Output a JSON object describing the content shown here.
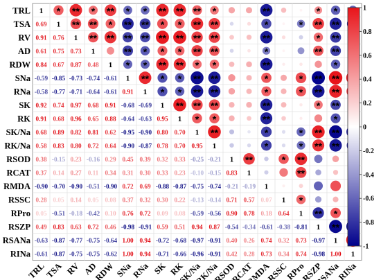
{
  "chart_data": {
    "type": "heatmap",
    "variables": [
      "TRL",
      "TSA",
      "RV",
      "AD",
      "RDW",
      "SNa",
      "RNa",
      "SK",
      "RK",
      "SK/Na",
      "RK/Na",
      "RSOD",
      "RCAT",
      "RMDA",
      "RSSC",
      "RPro",
      "RSZP",
      "RSANa",
      "RINa"
    ],
    "lower_triangle_values": [
      [
        1
      ],
      [
        0.69,
        1
      ],
      [
        0.91,
        0.76,
        1
      ],
      [
        0.61,
        0.75,
        0.73,
        1
      ],
      [
        0.84,
        0.67,
        0.87,
        0.48,
        1
      ],
      [
        -0.59,
        -0.85,
        -0.73,
        -0.74,
        -0.61,
        1
      ],
      [
        -0.58,
        -0.77,
        -0.71,
        -0.64,
        -0.61,
        0.91,
        1
      ],
      [
        0.92,
        0.74,
        0.97,
        0.68,
        0.91,
        -0.68,
        -0.69,
        1
      ],
      [
        0.91,
        0.68,
        0.96,
        0.65,
        0.88,
        -0.64,
        -0.63,
        0.95,
        1
      ],
      [
        0.68,
        0.89,
        0.82,
        0.81,
        0.62,
        -0.95,
        -0.9,
        0.8,
        0.7,
        1
      ],
      [
        0.58,
        0.83,
        0.8,
        0.72,
        0.64,
        -0.9,
        -0.87,
        0.78,
        0.7,
        0.95,
        1
      ],
      [
        0.38,
        -0.15,
        0.23,
        -0.16,
        0.29,
        0.45,
        0.39,
        0.32,
        0.33,
        -0.25,
        -0.21,
        1
      ],
      [
        0.37,
        0.14,
        0.27,
        0.11,
        0.34,
        0.31,
        0.3,
        0.33,
        0.23,
        -0.1,
        -0.15,
        0.83,
        1
      ],
      [
        -0.9,
        -0.7,
        -0.9,
        -0.51,
        -0.9,
        0.72,
        0.69,
        -0.88,
        -0.87,
        -0.75,
        -0.74,
        -0.21,
        -0.19,
        1
      ],
      [
        0.28,
        0.05,
        0.14,
        0.05,
        0.08,
        0.37,
        0.32,
        0.3,
        0.22,
        -0.13,
        -0.14,
        0.71,
        0.57,
        0.07,
        1
      ],
      [
        0.05,
        -0.51,
        -0.18,
        -0.42,
        0.1,
        0.76,
        0.72,
        0.09,
        0.08,
        -0.59,
        -0.56,
        0.9,
        0.78,
        0.18,
        0.64,
        1
      ],
      [
        0.49,
        0.83,
        0.63,
        0.72,
        0.46,
        -0.98,
        -0.91,
        0.59,
        0.51,
        0.94,
        0.87,
        -0.54,
        -0.34,
        -0.61,
        -0.38,
        -0.81,
        1
      ],
      [
        -0.63,
        -0.87,
        -0.77,
        -0.75,
        -0.64,
        1.0,
        0.94,
        -0.72,
        -0.68,
        -0.97,
        -0.91,
        0.4,
        0.26,
        0.74,
        0.32,
        0.73,
        -0.97,
        1
      ],
      [
        -0.61,
        -0.87,
        -0.75,
        -0.75,
        -0.62,
        1.0,
        0.94,
        -0.71,
        -0.66,
        -0.96,
        -0.91,
        0.42,
        0.28,
        0.73,
        0.34,
        0.74,
        -0.98,
        1.0,
        1
      ]
    ],
    "upper_triangle_stars": [
      [
        "",
        "*",
        "**",
        "*",
        "**",
        "*",
        "*",
        "**",
        "**",
        "**",
        "*",
        "",
        "",
        "**",
        "",
        "",
        "*",
        "*",
        "*"
      ],
      [
        "",
        "",
        "**",
        "**",
        "*",
        "**",
        "**",
        "*",
        "*",
        "**",
        "**",
        "",
        "",
        "*",
        "",
        "*",
        "**",
        "**",
        "**"
      ],
      [
        "",
        "",
        "",
        "**",
        "**",
        "**",
        "**",
        "**",
        "**",
        "**",
        "**",
        "",
        "",
        "**",
        "",
        "",
        "*",
        "**",
        "**"
      ],
      [
        "",
        "",
        "",
        "",
        "",
        "**",
        "*",
        "*",
        "*",
        "**",
        "**",
        "",
        "",
        "*",
        "",
        "",
        "**",
        "**",
        "**"
      ],
      [
        "",
        "",
        "",
        "",
        "",
        "*",
        "*",
        "**",
        "**",
        "*",
        "*",
        "",
        "",
        "**",
        "",
        "",
        "",
        "*",
        "*"
      ],
      [
        "",
        "",
        "",
        "",
        "",
        "",
        "**",
        "*",
        "*",
        "**",
        "**",
        "",
        "",
        "*",
        "",
        "*",
        "**",
        "**",
        "**"
      ],
      [
        "",
        "",
        "",
        "",
        "",
        "",
        "",
        "*",
        "*",
        "**",
        "**",
        "",
        "",
        "*",
        "",
        "*",
        "**",
        "**",
        "**"
      ],
      [
        "",
        "",
        "",
        "",
        "",
        "",
        "",
        "",
        "**",
        "**",
        "**",
        "",
        "",
        "**",
        "",
        "",
        "*",
        "**",
        "*"
      ],
      [
        "",
        "",
        "",
        "",
        "",
        "",
        "",
        "",
        "",
        "*",
        "*",
        "",
        "",
        "**",
        "",
        "",
        "",
        "*",
        "*"
      ],
      [
        "",
        "",
        "",
        "",
        "",
        "",
        "",
        "",
        "",
        "",
        "**",
        "",
        "",
        "*",
        "",
        "*",
        "**",
        "**",
        "**"
      ],
      [
        "",
        "",
        "",
        "",
        "",
        "",
        "",
        "",
        "",
        "",
        "",
        "",
        "",
        "*",
        "",
        "*",
        "**",
        "**",
        "**"
      ],
      [
        "",
        "",
        "",
        "",
        "",
        "",
        "",
        "",
        "",
        "",
        "",
        "",
        "**",
        "",
        "*",
        "**",
        "",
        "",
        ""
      ],
      [
        "",
        "",
        "",
        "",
        "",
        "",
        "",
        "",
        "",
        "",
        "",
        "",
        "",
        "",
        "",
        "**",
        "",
        "",
        ""
      ],
      [
        "",
        "",
        "",
        "",
        "",
        "",
        "",
        "",
        "",
        "",
        "",
        "",
        "",
        "",
        "",
        "",
        "",
        "",
        ""
      ],
      [
        "",
        "",
        "",
        "",
        "",
        "",
        "",
        "",
        "",
        "",
        "",
        "",
        "",
        "",
        "",
        "*",
        "",
        "",
        ""
      ],
      [
        "",
        "",
        "",
        "",
        "",
        "",
        "",
        "",
        "",
        "",
        "",
        "",
        "",
        "",
        "",
        "",
        "**",
        "*",
        "*"
      ],
      [
        "",
        "",
        "",
        "",
        "",
        "",
        "",
        "",
        "",
        "",
        "",
        "",
        "",
        "",
        "",
        "",
        "",
        "**",
        "**"
      ],
      [
        "",
        "",
        "",
        "",
        "",
        "",
        "",
        "",
        "",
        "",
        "",
        "",
        "",
        "",
        "",
        "",
        "",
        "",
        "**"
      ],
      [
        "",
        "",
        "",
        "",
        "",
        "",
        "",
        "",
        "",
        "",
        "",
        "",
        "",
        "",
        "",
        "",
        "",
        "",
        ""
      ]
    ],
    "colorbar": {
      "ticks": [
        "1",
        "0.8",
        "0.6",
        "0.4",
        "0.2",
        "0",
        "-0.2",
        "-0.4",
        "-0.6",
        "-0.8",
        "-1"
      ],
      "colors": {
        "positive": "#e8141a",
        "neutral": "#ffffff",
        "negative": "#00008b"
      }
    },
    "diagonal_label": "1"
  }
}
